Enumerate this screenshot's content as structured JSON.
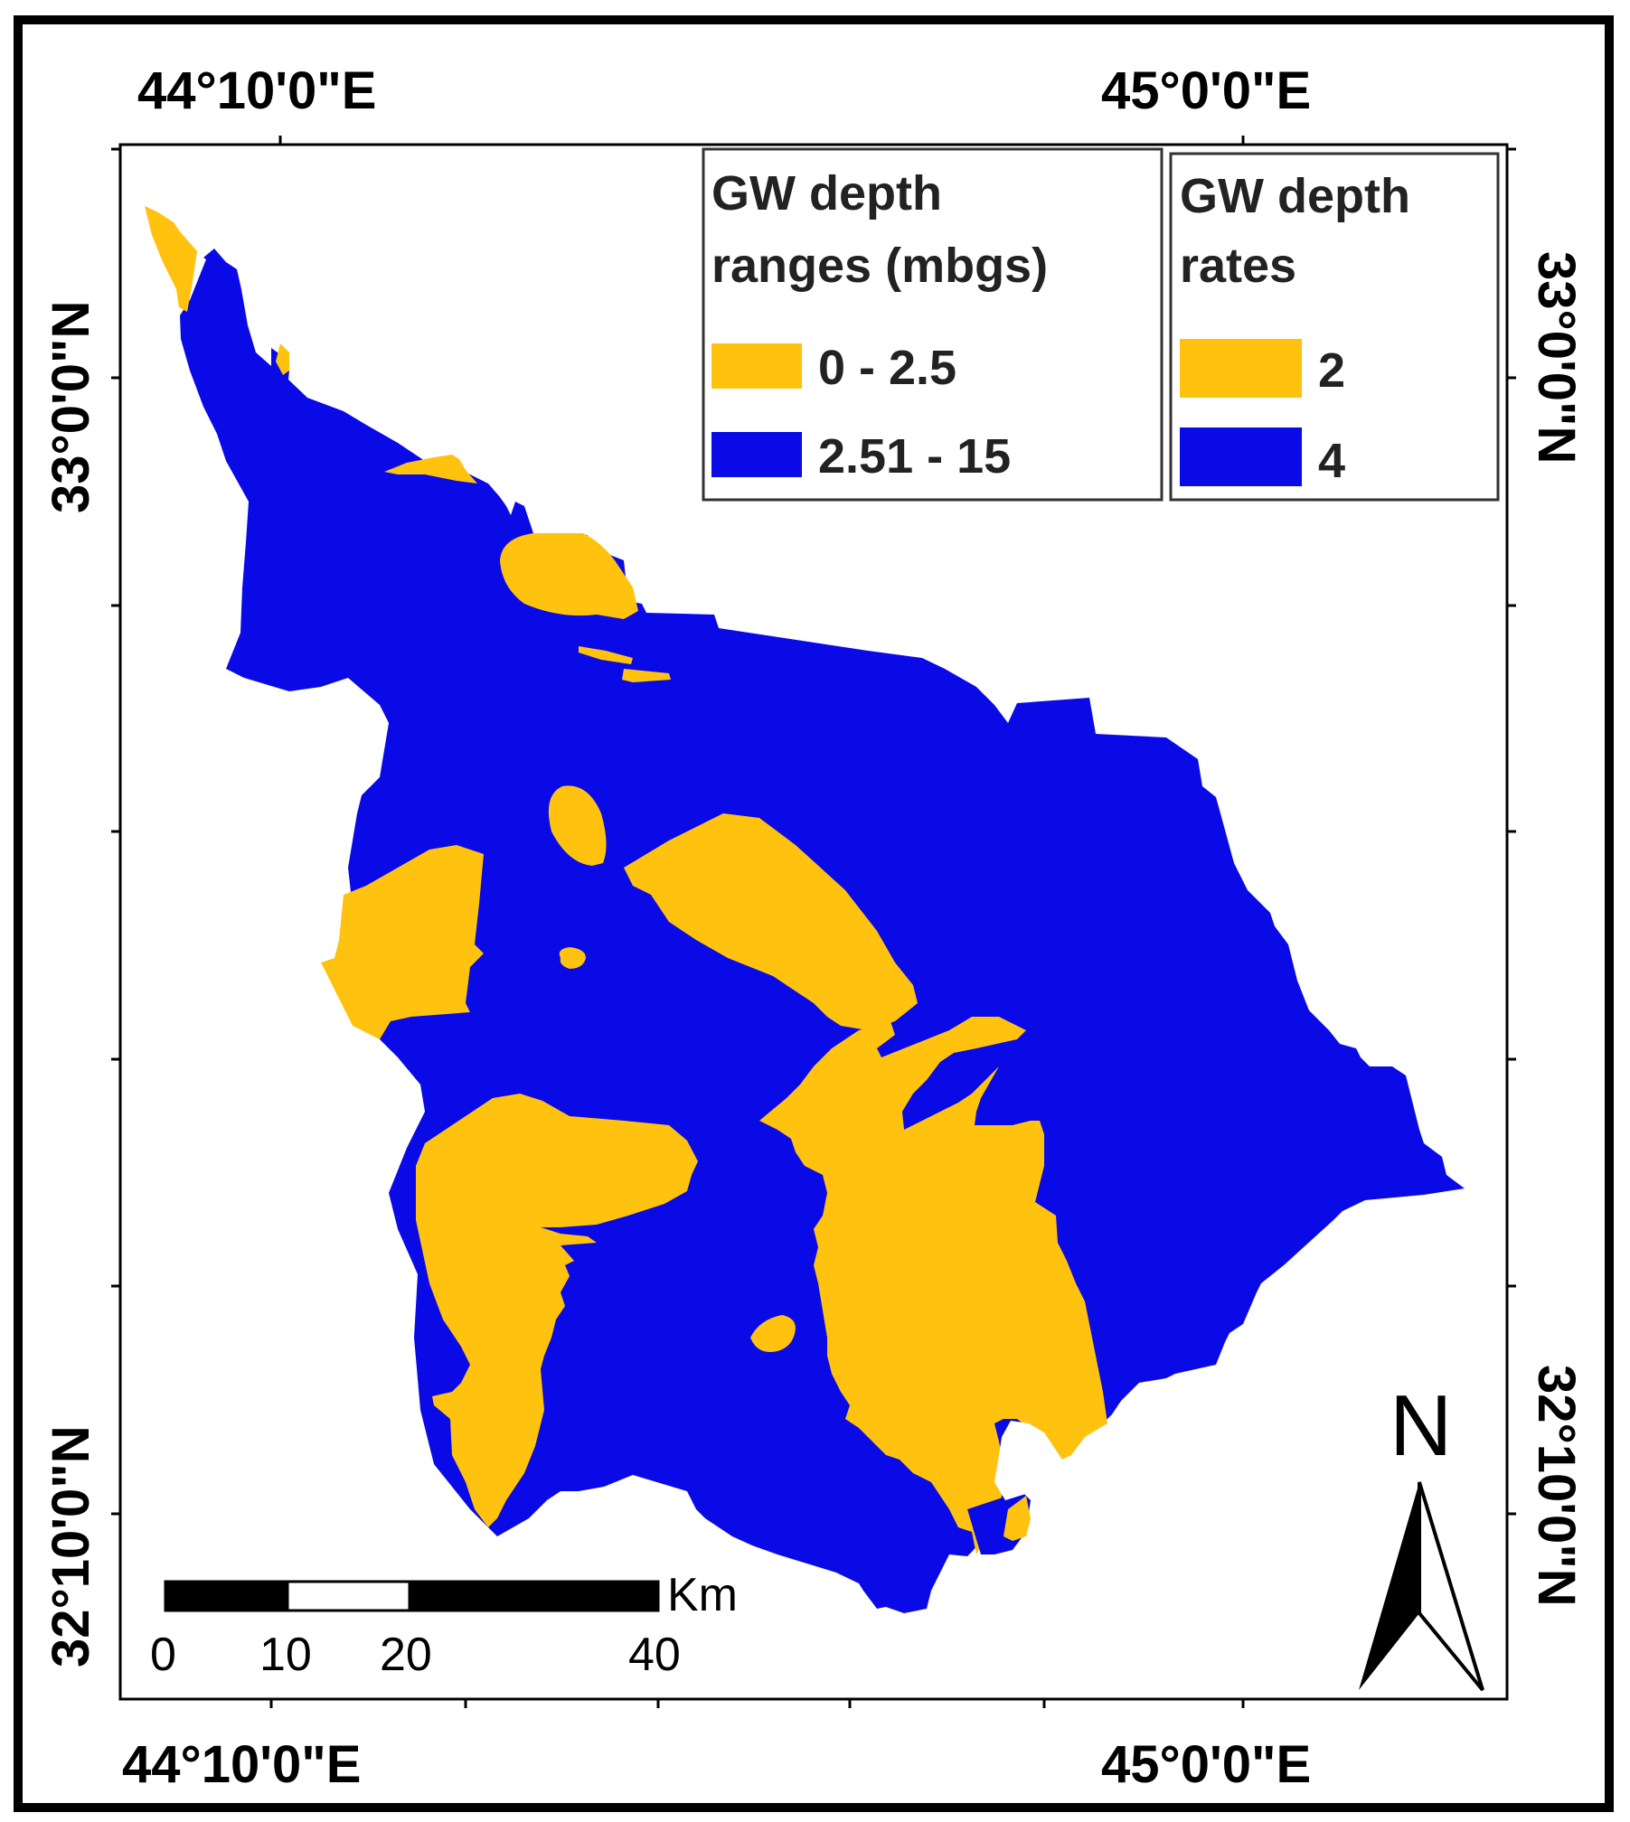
{
  "coordinates": {
    "top_left_lon": "44°10'0\"E",
    "top_right_lon": "45°0'0\"E",
    "bottom_left_lon": "44°10'0\"E",
    "bottom_right_lon": "45°0'0\"E",
    "left_upper_lat": "33°0'0\"N",
    "left_lower_lat": "32°10'0\"N",
    "right_upper_lat": "33°0'0\"N",
    "right_lower_lat": "32°10'0\"N"
  },
  "legend_ranges": {
    "title_line1": "GW depth",
    "title_line2": "ranges (mbgs)",
    "items": [
      {
        "label": "0 - 2.5",
        "color": "#FFC20E"
      },
      {
        "label": "2.51 - 15",
        "color": "#0A0AE6"
      }
    ]
  },
  "legend_rates": {
    "title_line1": "GW depth",
    "title_line2": "rates",
    "items": [
      {
        "label": "2",
        "color": "#FFC20E"
      },
      {
        "label": "4",
        "color": "#0A0AE6"
      }
    ]
  },
  "scale_bar": {
    "unit": "Km",
    "ticks": [
      "0",
      "10",
      "20",
      "40"
    ]
  },
  "north_arrow": {
    "label": "N"
  },
  "colors": {
    "shallow": "#FFC20E",
    "deep": "#0A0AE6",
    "frame": "#000000"
  }
}
